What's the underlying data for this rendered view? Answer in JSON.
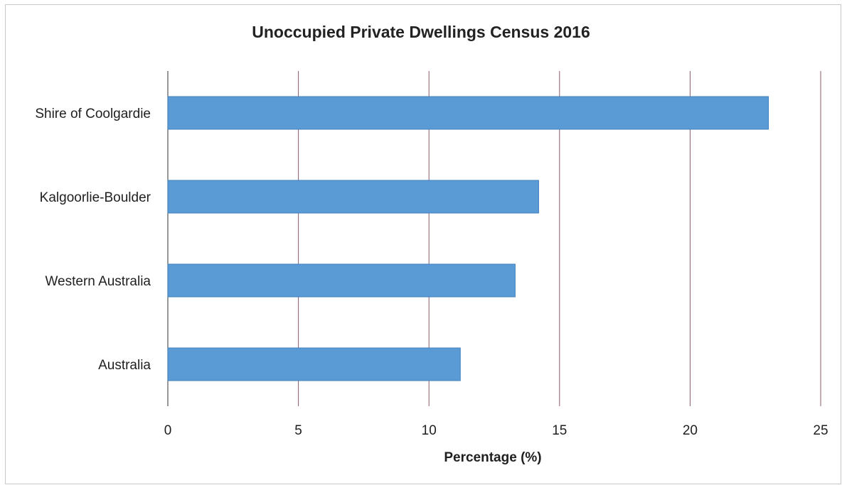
{
  "chart_data": {
    "type": "bar",
    "orientation": "horizontal",
    "title": "Unoccupied Private Dwellings Census 2016",
    "xlabel": "Percentage (%)",
    "ylabel": "",
    "categories": [
      "Shire of Coolgardie",
      "Kalgoorlie-Boulder",
      "Western Australia",
      "Australia"
    ],
    "values": [
      23.0,
      14.2,
      13.3,
      11.2
    ],
    "xlim": [
      0,
      25
    ],
    "xticks": [
      0,
      5,
      10,
      15,
      20,
      25
    ],
    "grid": true,
    "legend": "none",
    "colors": {
      "bar": "#5b9bd5",
      "bar_edge": "#3f7fc0",
      "grid": "#8b5a63",
      "text": "#1f1f1f"
    }
  }
}
